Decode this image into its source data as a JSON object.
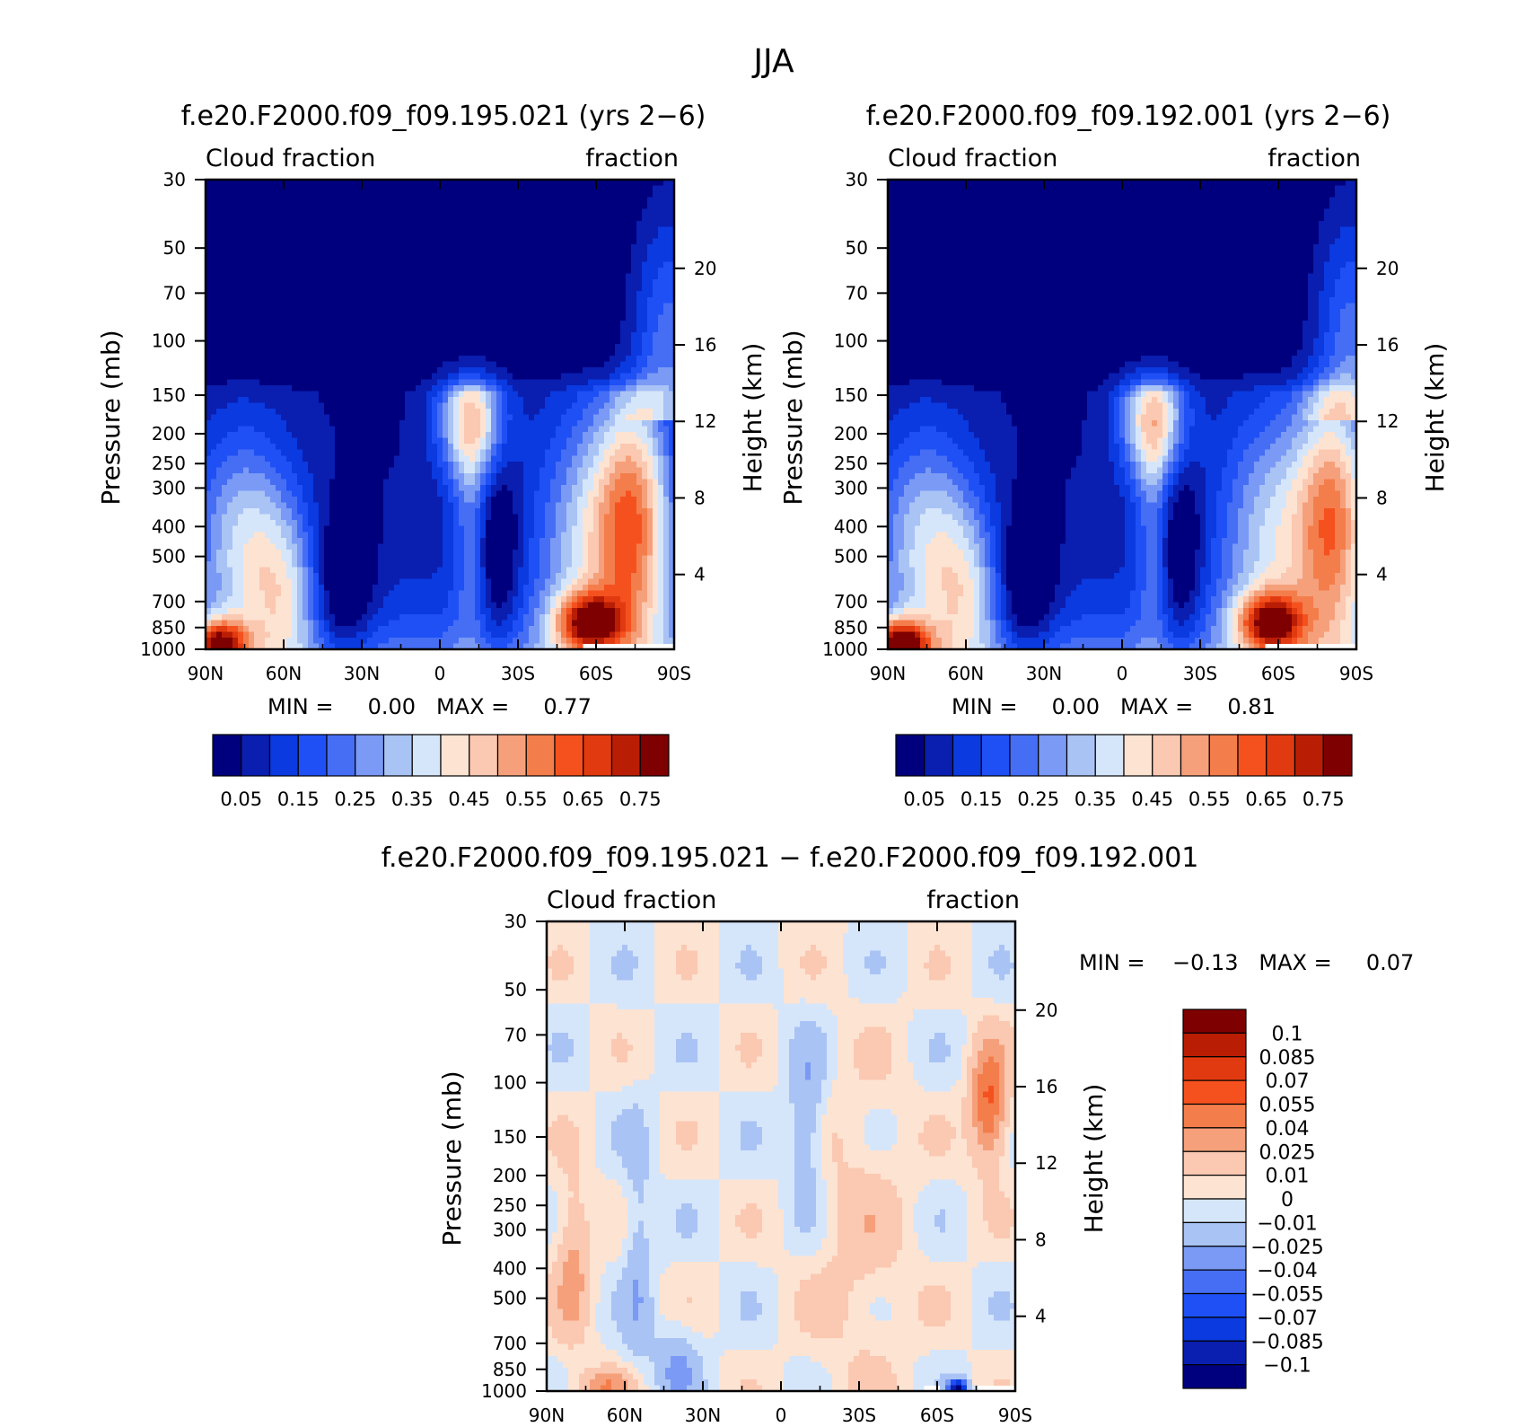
{
  "page_title": "JJA",
  "palettes": {
    "absolute": [
      "#00007f",
      "#0a1eb0",
      "#0a3ae0",
      "#1e50f5",
      "#466ef5",
      "#7a9af5",
      "#a9c3f5",
      "#d6e6fa",
      "#fde3d2",
      "#fbc8b2",
      "#f5a07a",
      "#f47d4c",
      "#f5511f",
      "#e23a10",
      "#b91e05",
      "#7f0000"
    ],
    "difference": [
      "#00007f",
      "#0a1eb0",
      "#0a3ae0",
      "#1e50f5",
      "#466ef5",
      "#7a9af5",
      "#a9c3f5",
      "#d6e6fa",
      "#fde3d2",
      "#fbc8b2",
      "#f5a07a",
      "#f47d4c",
      "#f5511f",
      "#e23a10",
      "#b91e05",
      "#7f0000"
    ]
  },
  "chart_data": [
    {
      "type": "heatmap",
      "title": "f.e20.F2000.f09_f09.195.021 (yrs 2−6)",
      "left_label": "Cloud fraction",
      "right_label": "fraction",
      "xlabel": "",
      "ylabel": "Pressure (mb)",
      "ylabel_right": "Height (km)",
      "x_ticks": [
        "90N",
        "60N",
        "30N",
        "0",
        "30S",
        "60S",
        "90S"
      ],
      "x_range": [
        90,
        -90
      ],
      "y_ticks": [
        30,
        50,
        70,
        100,
        150,
        200,
        250,
        300,
        400,
        500,
        700,
        850,
        1000
      ],
      "y_range": [
        1000,
        30
      ],
      "y_scale": "log",
      "right_ticks": [
        20,
        16,
        12,
        8,
        4
      ],
      "min_max": "MIN =     0.00   MAX =     0.77",
      "colorbar_labels": [
        "0.05",
        "0.15",
        "0.25",
        "0.35",
        "0.45",
        "0.55",
        "0.65",
        "0.75"
      ],
      "colorbar_palette": "absolute",
      "levels": [
        0.05,
        0.1,
        0.15,
        0.2,
        0.25,
        0.3,
        0.35,
        0.4,
        0.45,
        0.5,
        0.55,
        0.6,
        0.65,
        0.7,
        0.75
      ],
      "features": [
        {
          "lat": 85,
          "p": 960,
          "value": 0.72
        },
        {
          "lat": -57,
          "p": 840,
          "value": 0.66
        },
        {
          "lat": -12,
          "p": 200,
          "value": 0.44
        },
        {
          "lat": -75,
          "p": 400,
          "value": 0.47
        },
        {
          "lat": 37,
          "p": 700,
          "value": 0.03
        },
        {
          "lat": 10,
          "p": 500,
          "value": 0.05
        },
        {
          "lat": -50,
          "p": 700,
          "value": 0.42
        }
      ]
    },
    {
      "type": "heatmap",
      "title": "f.e20.F2000.f09_f09.192.001 (yrs 2−6)",
      "left_label": "Cloud fraction",
      "right_label": "fraction",
      "xlabel": "",
      "ylabel": "Pressure (mb)",
      "ylabel_right": "Height (km)",
      "x_ticks": [
        "90N",
        "60N",
        "30N",
        "0",
        "30S",
        "60S",
        "90S"
      ],
      "x_range": [
        90,
        -90
      ],
      "y_ticks": [
        30,
        50,
        70,
        100,
        150,
        200,
        250,
        300,
        400,
        500,
        700,
        850,
        1000
      ],
      "y_range": [
        1000,
        30
      ],
      "y_scale": "log",
      "right_ticks": [
        20,
        16,
        12,
        8,
        4
      ],
      "min_max": "MIN =     0.00   MAX =     0.81",
      "colorbar_labels": [
        "0.05",
        "0.15",
        "0.25",
        "0.35",
        "0.45",
        "0.55",
        "0.65",
        "0.75"
      ],
      "colorbar_palette": "absolute",
      "levels": [
        0.05,
        0.1,
        0.15,
        0.2,
        0.25,
        0.3,
        0.35,
        0.4,
        0.45,
        0.5,
        0.55,
        0.6,
        0.65,
        0.7,
        0.75
      ],
      "features": [
        {
          "lat": 85,
          "p": 960,
          "value": 0.78
        },
        {
          "lat": -57,
          "p": 840,
          "value": 0.68
        },
        {
          "lat": -12,
          "p": 200,
          "value": 0.45
        },
        {
          "lat": -82,
          "p": 400,
          "value": 0.52
        },
        {
          "lat": 37,
          "p": 700,
          "value": 0.02
        },
        {
          "lat": 10,
          "p": 500,
          "value": 0.05
        },
        {
          "lat": -50,
          "p": 700,
          "value": 0.43
        }
      ]
    },
    {
      "type": "heatmap",
      "title": "f.e20.F2000.f09_f09.195.021 − f.e20.F2000.f09_f09.192.001",
      "left_label": "Cloud fraction",
      "right_label": "fraction",
      "xlabel": "",
      "ylabel": "Pressure (mb)",
      "ylabel_right": "Height (km)",
      "x_ticks": [
        "90N",
        "60N",
        "30N",
        "0",
        "30S",
        "60S",
        "90S"
      ],
      "x_range": [
        90,
        -90
      ],
      "y_ticks": [
        30,
        50,
        70,
        100,
        150,
        200,
        250,
        300,
        400,
        500,
        700,
        850,
        1000
      ],
      "y_range": [
        1000,
        30
      ],
      "y_scale": "log",
      "right_ticks": [
        20,
        16,
        12,
        8,
        4
      ],
      "min_max": "MIN =    −0.13   MAX =     0.07",
      "colorbar_labels": [
        "0.1",
        "0.085",
        "0.07",
        "0.055",
        "0.04",
        "0.025",
        "0.01",
        "0",
        "−0.01",
        "−0.025",
        "−0.04",
        "−0.055",
        "−0.07",
        "−0.085",
        "−0.1"
      ],
      "colorbar_palette": "difference",
      "levels": [
        -0.1,
        -0.085,
        -0.07,
        -0.055,
        -0.04,
        -0.025,
        -0.01,
        0,
        0.01,
        0.025,
        0.04,
        0.055,
        0.07,
        0.085,
        0.1
      ],
      "features": [
        {
          "lat": -80,
          "p": 140,
          "value": 0.06
        },
        {
          "lat": -68,
          "p": 980,
          "value": -0.13
        },
        {
          "lat": 80,
          "p": 380,
          "value": 0.03
        },
        {
          "lat": 68,
          "p": 960,
          "value": 0.035
        },
        {
          "lat": -30,
          "p": 400,
          "value": 0.015
        },
        {
          "lat": -10,
          "p": 150,
          "value": -0.03
        }
      ]
    }
  ]
}
